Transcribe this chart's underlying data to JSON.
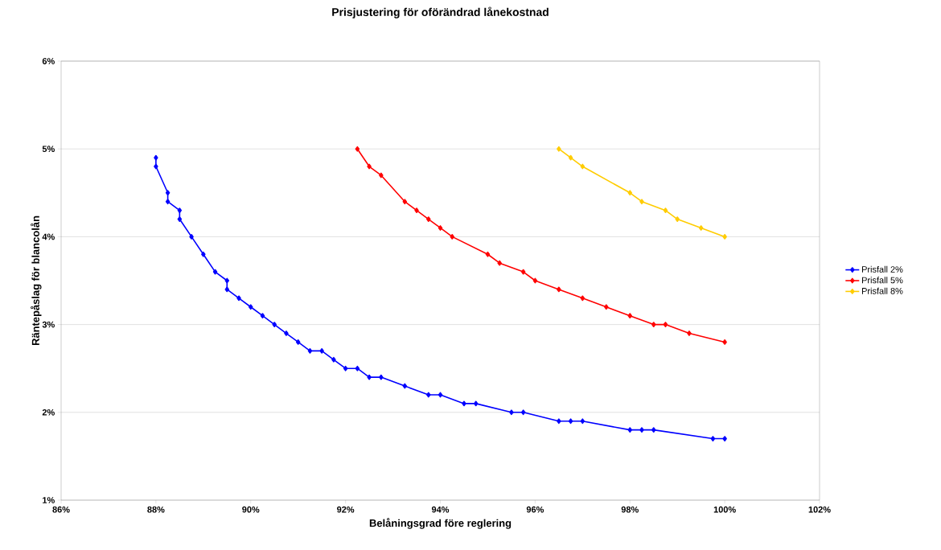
{
  "chart_data": {
    "type": "line",
    "title": "Prisjustering för oförändrad lånekostnad",
    "xlabel": "Belåningsgrad före reglering",
    "ylabel": "Räntepåslag för blancolån",
    "xlim": [
      86,
      102
    ],
    "ylim": [
      1,
      6
    ],
    "xticks": [
      {
        "value": 86,
        "label": "86%"
      },
      {
        "value": 88,
        "label": "88%"
      },
      {
        "value": 90,
        "label": "90%"
      },
      {
        "value": 92,
        "label": "92%"
      },
      {
        "value": 94,
        "label": "94%"
      },
      {
        "value": 96,
        "label": "96%"
      },
      {
        "value": 98,
        "label": "98%"
      },
      {
        "value": 100,
        "label": "100%"
      },
      {
        "value": 102,
        "label": "102%"
      }
    ],
    "yticks": [
      {
        "value": 1,
        "label": "1%"
      },
      {
        "value": 2,
        "label": "2%"
      },
      {
        "value": 3,
        "label": "3%"
      },
      {
        "value": 4,
        "label": "4%"
      },
      {
        "value": 5,
        "label": "5%"
      },
      {
        "value": 6,
        "label": "6%"
      }
    ],
    "grid": "y",
    "legend": "right",
    "marker": "diamond",
    "line_style": "solid",
    "series": [
      {
        "name": "Prisfall 2%",
        "color": "#0000ff",
        "x": [
          88,
          88,
          88.25,
          88.25,
          88.5,
          88.5,
          88.75,
          89,
          89.25,
          89.5,
          89.5,
          89.75,
          90,
          90.25,
          90.5,
          90.75,
          91,
          91.25,
          91.5,
          91.75,
          92,
          92.25,
          92.5,
          92.75,
          93.25,
          93.75,
          94,
          94.5,
          94.75,
          95.5,
          95.75,
          96.5,
          96.75,
          97,
          98,
          98.25,
          98.5,
          99.75,
          100
        ],
        "values": [
          4.9,
          4.8,
          4.5,
          4.4,
          4.3,
          4.2,
          4.0,
          3.8,
          3.6,
          3.5,
          3.4,
          3.3,
          3.2,
          3.1,
          3.0,
          2.9,
          2.8,
          2.7,
          2.7,
          2.6,
          2.5,
          2.5,
          2.4,
          2.4,
          2.3,
          2.2,
          2.2,
          2.1,
          2.1,
          2.0,
          2.0,
          1.9,
          1.9,
          1.9,
          1.8,
          1.8,
          1.8,
          1.7,
          1.7
        ]
      },
      {
        "name": "Prisfall 5%",
        "color": "#ff0000",
        "x": [
          92.25,
          92.5,
          92.75,
          93.25,
          93.5,
          93.75,
          94,
          94.25,
          95,
          95.25,
          95.75,
          96,
          96.5,
          97,
          97.5,
          98,
          98.5,
          98.75,
          99.25,
          100
        ],
        "values": [
          5.0,
          4.8,
          4.7,
          4.4,
          4.3,
          4.2,
          4.1,
          4.0,
          3.8,
          3.7,
          3.6,
          3.5,
          3.4,
          3.3,
          3.2,
          3.1,
          3.0,
          3.0,
          2.9,
          2.8
        ]
      },
      {
        "name": "Prisfall 8%",
        "color": "#ffcc00",
        "x": [
          96.5,
          96.75,
          97,
          98,
          98.25,
          98.75,
          99,
          99.5,
          100
        ],
        "values": [
          5.0,
          4.9,
          4.8,
          4.5,
          4.4,
          4.3,
          4.2,
          4.1,
          4.0
        ]
      }
    ]
  }
}
